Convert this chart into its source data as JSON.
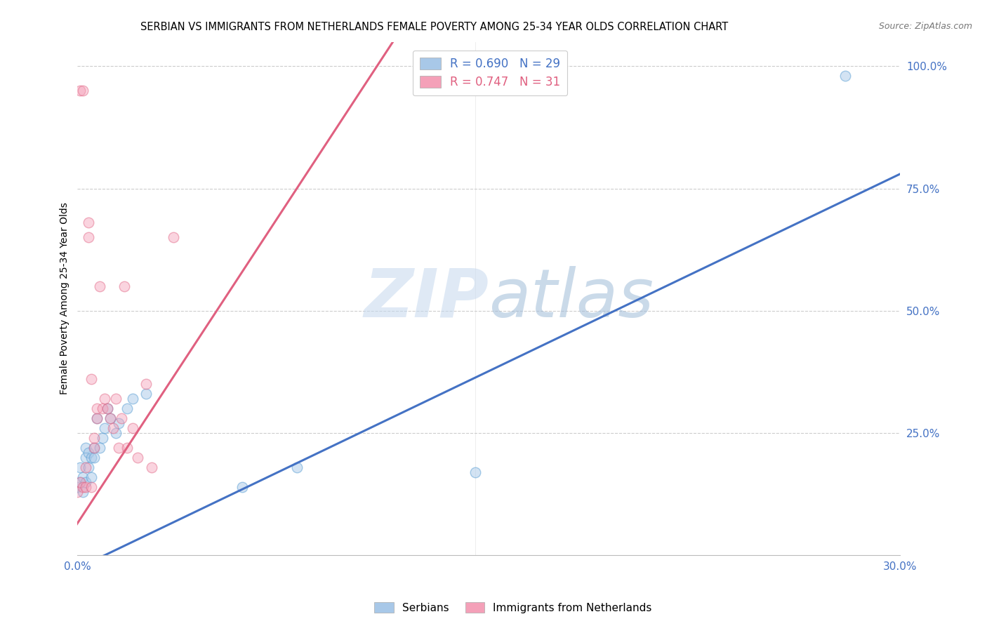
{
  "title": "SERBIAN VS IMMIGRANTS FROM NETHERLANDS FEMALE POVERTY AMONG 25-34 YEAR OLDS CORRELATION CHART",
  "source": "Source: ZipAtlas.com",
  "ylabel_label": "Female Poverty Among 25-34 Year Olds",
  "watermark_zip": "ZIP",
  "watermark_atlas": "atlas",
  "blue_color": "#a8c8e8",
  "pink_color": "#f4a0b8",
  "blue_line_color": "#4472c4",
  "pink_line_color": "#e06080",
  "blue_edge": "#5a9fd4",
  "pink_edge": "#e06080",
  "serbian_x": [
    0.0,
    0.001,
    0.001,
    0.002,
    0.002,
    0.003,
    0.003,
    0.003,
    0.004,
    0.004,
    0.005,
    0.005,
    0.006,
    0.006,
    0.007,
    0.008,
    0.009,
    0.01,
    0.011,
    0.012,
    0.014,
    0.015,
    0.018,
    0.02,
    0.025,
    0.06,
    0.08,
    0.145,
    0.28
  ],
  "serbian_y": [
    0.14,
    0.15,
    0.18,
    0.13,
    0.16,
    0.15,
    0.2,
    0.22,
    0.18,
    0.21,
    0.16,
    0.2,
    0.22,
    0.2,
    0.28,
    0.22,
    0.24,
    0.26,
    0.3,
    0.28,
    0.25,
    0.27,
    0.3,
    0.32,
    0.33,
    0.14,
    0.18,
    0.17,
    0.98
  ],
  "neth_x": [
    0.0,
    0.001,
    0.001,
    0.002,
    0.002,
    0.003,
    0.003,
    0.004,
    0.004,
    0.005,
    0.005,
    0.006,
    0.006,
    0.007,
    0.007,
    0.008,
    0.009,
    0.01,
    0.011,
    0.012,
    0.013,
    0.014,
    0.015,
    0.016,
    0.017,
    0.018,
    0.02,
    0.022,
    0.025,
    0.027,
    0.035
  ],
  "neth_y": [
    0.13,
    0.15,
    0.95,
    0.14,
    0.95,
    0.14,
    0.18,
    0.65,
    0.68,
    0.14,
    0.36,
    0.22,
    0.24,
    0.28,
    0.3,
    0.55,
    0.3,
    0.32,
    0.3,
    0.28,
    0.26,
    0.32,
    0.22,
    0.28,
    0.55,
    0.22,
    0.26,
    0.2,
    0.35,
    0.18,
    0.65
  ],
  "blue_line_x": [
    -0.005,
    0.3
  ],
  "blue_line_y": [
    -0.04,
    0.78
  ],
  "pink_line_x": [
    -0.003,
    0.115
  ],
  "pink_line_y": [
    0.04,
    1.05
  ],
  "xlim": [
    0.0,
    0.3
  ],
  "ylim": [
    0.0,
    1.05
  ],
  "ytick_vals": [
    0.25,
    0.5,
    0.75,
    1.0
  ],
  "ytick_labels": [
    "25.0%",
    "50.0%",
    "75.0%",
    "100.0%"
  ],
  "xtick_vals": [
    0.0,
    0.05,
    0.1,
    0.15,
    0.2,
    0.25,
    0.3
  ],
  "xtick_labels": [
    "0.0%",
    "",
    "",
    "",
    "",
    "",
    "30.0%"
  ],
  "legend1_label": "R = 0.690   N = 29",
  "legend2_label": "R = 0.747   N = 31",
  "bottom_legend1": "Serbians",
  "bottom_legend2": "Immigrants from Netherlands",
  "marker_size": 110,
  "alpha_blue": 0.5,
  "alpha_pink": 0.45
}
